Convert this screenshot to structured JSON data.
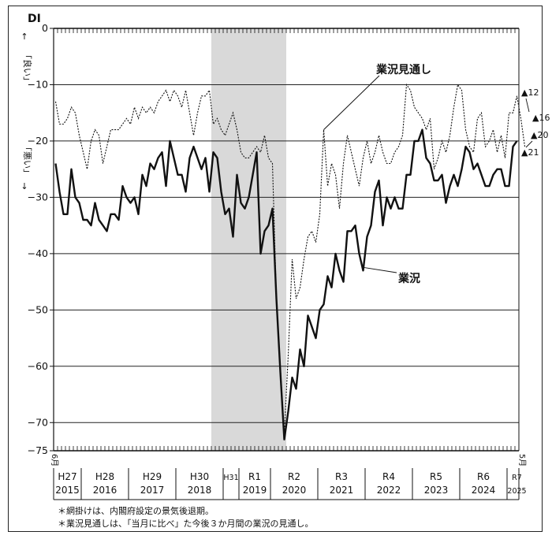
{
  "chart_data": {
    "type": "line",
    "ylabel": "DI",
    "ylabel_good": "「良い」",
    "ylabel_bad": "「悪い」",
    "ylabel_good_arrow": "↑",
    "ylabel_bad_arrow": "↓",
    "ylim": [
      -75,
      0
    ],
    "yticks": [
      0,
      -10,
      -20,
      -30,
      -40,
      -50,
      -60,
      -70,
      -75
    ],
    "grid": "horizontal",
    "start_month_label": "6月",
    "end_month_label": "5月",
    "years": [
      {
        "era": "H27",
        "year": "2015",
        "start": 0,
        "end": 7
      },
      {
        "era": "H28",
        "year": "2016",
        "start": 7,
        "end": 19
      },
      {
        "era": "H29",
        "year": "2017",
        "start": 19,
        "end": 31
      },
      {
        "era": "H30",
        "year": "2018",
        "start": 31,
        "end": 43
      },
      {
        "era": "H31",
        "year": "",
        "start": 43,
        "end": 47
      },
      {
        "era": "R1",
        "year": "2019",
        "start": 47,
        "end": 55
      },
      {
        "era": "R2",
        "year": "2020",
        "start": 55,
        "end": 67
      },
      {
        "era": "R3",
        "year": "2021",
        "start": 67,
        "end": 79
      },
      {
        "era": "R4",
        "year": "2022",
        "start": 79,
        "end": 91
      },
      {
        "era": "R5",
        "year": "2023",
        "start": 91,
        "end": 103
      },
      {
        "era": "R6",
        "year": "2024",
        "start": 103,
        "end": 115
      },
      {
        "era": "R7",
        "year": "2025",
        "start": 115,
        "end": 120
      }
    ],
    "shaded_period": {
      "start": 40,
      "end": 59
    },
    "series": [
      {
        "name": "業況",
        "style": "solid",
        "values": [
          -24,
          -29,
          -33,
          -33,
          -25,
          -30,
          -31,
          -34,
          -34,
          -35,
          -31,
          -34,
          -35,
          -36,
          -33,
          -33,
          -34,
          -28,
          -30,
          -31,
          -30,
          -33,
          -26,
          -28,
          -24,
          -25,
          -23,
          -22,
          -28,
          -20,
          -23,
          -26,
          -26,
          -29,
          -23,
          -21,
          -23,
          -25,
          -23,
          -29,
          -22,
          -23,
          -29,
          -33,
          -32,
          -37,
          -26,
          -31,
          -32,
          -30,
          -26,
          -22,
          -40,
          -36,
          -35,
          -32,
          -48,
          -61,
          -73,
          -68,
          -62,
          -64,
          -57,
          -60,
          -51,
          -53,
          -55,
          -50,
          -49,
          -44,
          -46,
          -40,
          -43,
          -45,
          -36,
          -36,
          -35,
          -40,
          -43,
          -37,
          -35,
          -29,
          -27,
          -35,
          -30,
          -32,
          -30,
          -32,
          -32,
          -26,
          -26,
          -20,
          -20,
          -18,
          -23,
          -24,
          -27,
          -27,
          -26,
          -31,
          -28,
          -26,
          -28,
          -25,
          -21,
          -22,
          -25,
          -24,
          -26,
          -28,
          -28,
          -26,
          -25,
          -25,
          -28,
          -28,
          -21,
          -20
        ],
        "end_label": "▲20"
      },
      {
        "name": "業況見通し",
        "style": "dotted",
        "values": [
          -13,
          -17,
          -17,
          -16,
          -14,
          -15,
          -19,
          -22,
          -25,
          -20,
          -18,
          -19,
          -24,
          -21,
          -18,
          -18,
          -18,
          -17,
          -16,
          -17,
          -14,
          -16,
          -14,
          -15,
          -14,
          -15,
          -13,
          -12,
          -11,
          -13,
          -11,
          -12,
          -14,
          -11,
          -15,
          -19,
          -15,
          -12,
          -12,
          -11,
          -17,
          -16,
          -18,
          -19,
          -17,
          -15,
          -18,
          -22,
          -23,
          -23,
          -22,
          -21,
          -22,
          -19,
          -23,
          -24,
          -48,
          -60,
          -72,
          -58,
          -41,
          -48,
          -46,
          -41,
          -37,
          -36,
          -38,
          -33,
          -18,
          -28,
          -24,
          -26,
          -32,
          -24,
          -19,
          -22,
          -25,
          -28,
          -23,
          -20,
          -24,
          -22,
          -19,
          -22,
          -24,
          -24,
          -22,
          -21,
          -19,
          -10,
          -11,
          -14,
          -15,
          -16,
          -18,
          -16,
          -25,
          -23,
          -20,
          -22,
          -19,
          -14,
          -10,
          -11,
          -18,
          -21,
          -22,
          -16,
          -15,
          -21,
          -20,
          -18,
          -22,
          -19,
          -23,
          -15,
          -15,
          -12,
          -16,
          -21
        ],
        "end_label": "▲16"
      }
    ],
    "extra_end_labels": [
      "▲12",
      "▲21"
    ],
    "notes": [
      "＊網掛けは、内閣府設定の景気後退期。",
      "＊業況見通しは、「当月に比べ」た今後３か月間の業況の見通し。"
    ]
  }
}
